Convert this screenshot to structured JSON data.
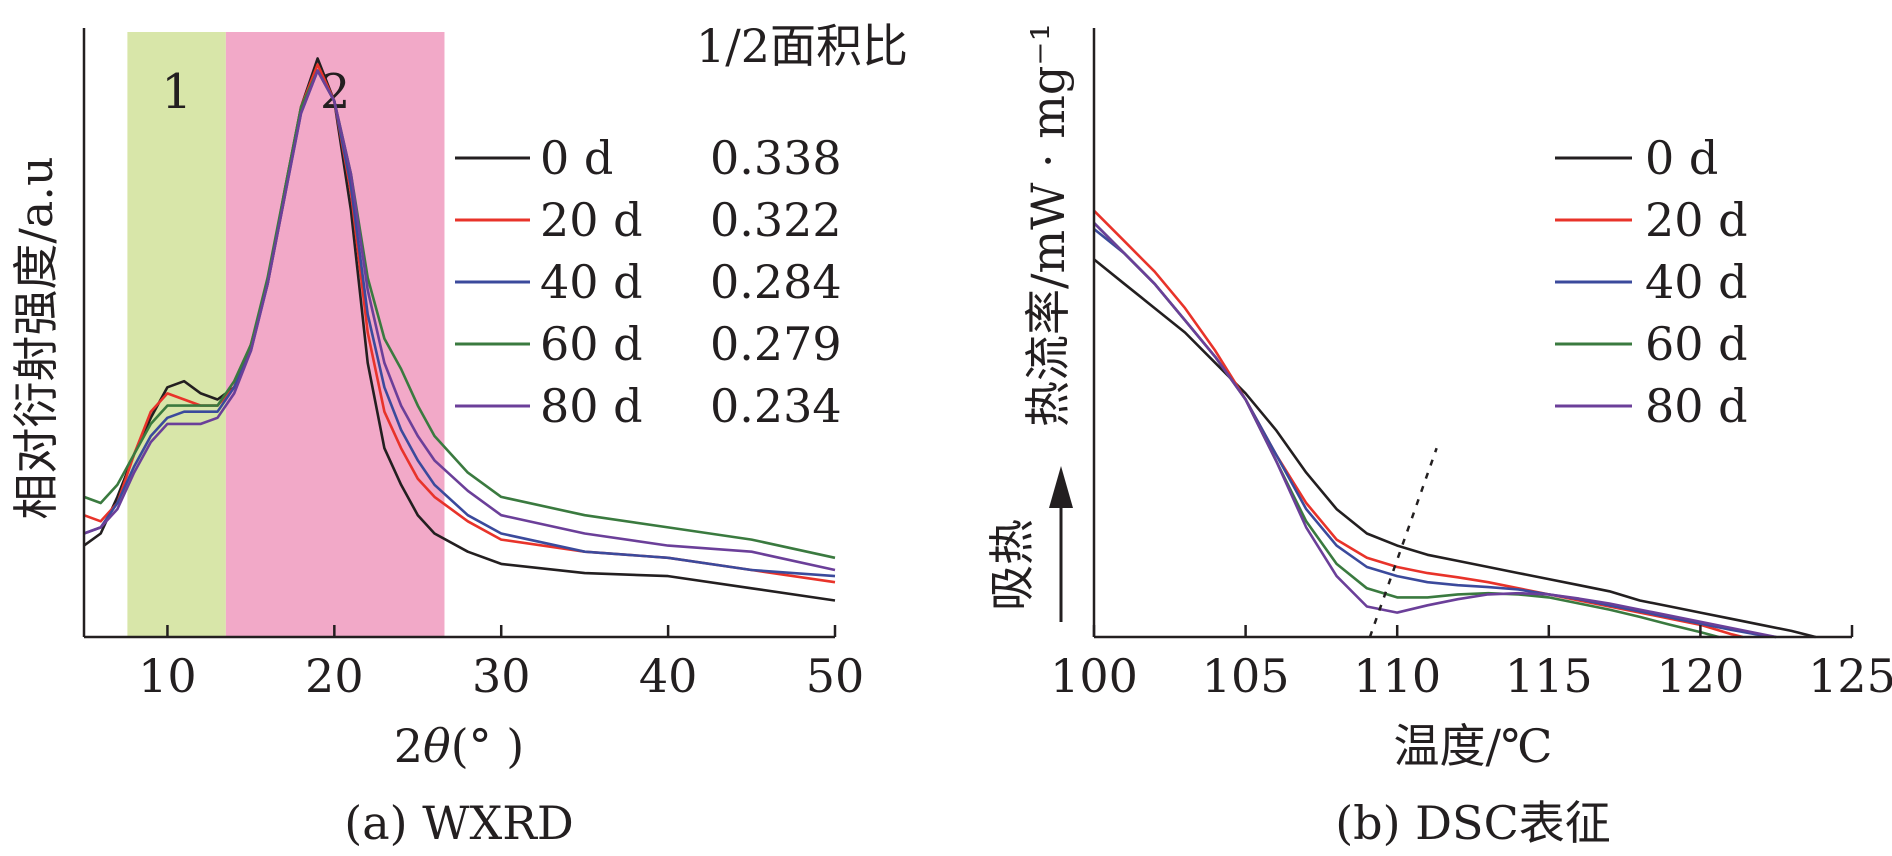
{
  "chart_data": [
    {
      "type": "line",
      "caption": "(a) WXRD",
      "xlabel_prefix": "2",
      "xlabel_theta": "θ",
      "xlabel_suffix": "(° )",
      "ylabel": "相对衍射强度/a.u",
      "xlim": [
        5,
        50
      ],
      "xticks": [
        "10",
        "20",
        "30",
        "40",
        "50"
      ],
      "xtick_values": [
        10,
        20,
        30,
        40,
        50
      ],
      "regions": [
        {
          "label": "1",
          "x0": 7.6,
          "x1": 13.5,
          "color": "#d8e6a9"
        },
        {
          "label": "2",
          "x0": 13.5,
          "x1": 26.6,
          "color": "#f2a9c8"
        }
      ],
      "legend_header": "1/2面积比",
      "series": [
        {
          "name": "0 d",
          "ratio": "0.338",
          "color": "#231f20",
          "points": [
            [
              5,
              0.15
            ],
            [
              6,
              0.17
            ],
            [
              7,
              0.23
            ],
            [
              8,
              0.3
            ],
            [
              9,
              0.36
            ],
            [
              10,
              0.41
            ],
            [
              11,
              0.42
            ],
            [
              12,
              0.4
            ],
            [
              13,
              0.39
            ],
            [
              14,
              0.41
            ],
            [
              15,
              0.48
            ],
            [
              16,
              0.58
            ],
            [
              17,
              0.73
            ],
            [
              18,
              0.87
            ],
            [
              19,
              0.95
            ],
            [
              20,
              0.88
            ],
            [
              21,
              0.7
            ],
            [
              22,
              0.45
            ],
            [
              23,
              0.31
            ],
            [
              24,
              0.25
            ],
            [
              25,
              0.2
            ],
            [
              26,
              0.17
            ],
            [
              28,
              0.14
            ],
            [
              30,
              0.12
            ],
            [
              35,
              0.105
            ],
            [
              40,
              0.1
            ],
            [
              45,
              0.08
            ],
            [
              50,
              0.06
            ]
          ]
        },
        {
          "name": "20 d",
          "ratio": "0.322",
          "color": "#e8332a",
          "points": [
            [
              5,
              0.2
            ],
            [
              6,
              0.19
            ],
            [
              7,
              0.22
            ],
            [
              8,
              0.3
            ],
            [
              9,
              0.37
            ],
            [
              10,
              0.4
            ],
            [
              11,
              0.39
            ],
            [
              12,
              0.38
            ],
            [
              13,
              0.38
            ],
            [
              14,
              0.41
            ],
            [
              15,
              0.48
            ],
            [
              16,
              0.58
            ],
            [
              17,
              0.72
            ],
            [
              18,
              0.87
            ],
            [
              19,
              0.94
            ],
            [
              20,
              0.88
            ],
            [
              21,
              0.73
            ],
            [
              22,
              0.5
            ],
            [
              23,
              0.37
            ],
            [
              24,
              0.31
            ],
            [
              25,
              0.26
            ],
            [
              26,
              0.23
            ],
            [
              28,
              0.19
            ],
            [
              30,
              0.16
            ],
            [
              35,
              0.14
            ],
            [
              40,
              0.13
            ],
            [
              45,
              0.11
            ],
            [
              50,
              0.09
            ]
          ]
        },
        {
          "name": "40 d",
          "ratio": "0.284",
          "color": "#3b4a9c",
          "points": [
            [
              5,
              0.17
            ],
            [
              6,
              0.18
            ],
            [
              7,
              0.22
            ],
            [
              8,
              0.28
            ],
            [
              9,
              0.33
            ],
            [
              10,
              0.36
            ],
            [
              11,
              0.37
            ],
            [
              12,
              0.37
            ],
            [
              13,
              0.37
            ],
            [
              14,
              0.41
            ],
            [
              15,
              0.47
            ],
            [
              16,
              0.58
            ],
            [
              17,
              0.72
            ],
            [
              18,
              0.86
            ],
            [
              19,
              0.93
            ],
            [
              20,
              0.88
            ],
            [
              21,
              0.74
            ],
            [
              22,
              0.53
            ],
            [
              23,
              0.41
            ],
            [
              24,
              0.34
            ],
            [
              25,
              0.29
            ],
            [
              26,
              0.25
            ],
            [
              28,
              0.2
            ],
            [
              30,
              0.17
            ],
            [
              35,
              0.14
            ],
            [
              40,
              0.13
            ],
            [
              45,
              0.11
            ],
            [
              50,
              0.1
            ]
          ]
        },
        {
          "name": "60 d",
          "ratio": "0.279",
          "color": "#3a7a3f",
          "points": [
            [
              5,
              0.23
            ],
            [
              6,
              0.22
            ],
            [
              7,
              0.25
            ],
            [
              8,
              0.3
            ],
            [
              9,
              0.35
            ],
            [
              10,
              0.38
            ],
            [
              11,
              0.38
            ],
            [
              12,
              0.38
            ],
            [
              13,
              0.38
            ],
            [
              14,
              0.42
            ],
            [
              15,
              0.48
            ],
            [
              16,
              0.59
            ],
            [
              17,
              0.73
            ],
            [
              18,
              0.87
            ],
            [
              19,
              0.93
            ],
            [
              20,
              0.88
            ],
            [
              21,
              0.76
            ],
            [
              22,
              0.59
            ],
            [
              23,
              0.49
            ],
            [
              24,
              0.44
            ],
            [
              25,
              0.38
            ],
            [
              26,
              0.33
            ],
            [
              28,
              0.27
            ],
            [
              30,
              0.23
            ],
            [
              35,
              0.2
            ],
            [
              40,
              0.18
            ],
            [
              45,
              0.16
            ],
            [
              50,
              0.13
            ]
          ]
        },
        {
          "name": "80 d",
          "ratio": "0.234",
          "color": "#6b3f99",
          "points": [
            [
              5,
              0.17
            ],
            [
              6,
              0.18
            ],
            [
              7,
              0.21
            ],
            [
              8,
              0.27
            ],
            [
              9,
              0.32
            ],
            [
              10,
              0.35
            ],
            [
              11,
              0.35
            ],
            [
              12,
              0.35
            ],
            [
              13,
              0.36
            ],
            [
              14,
              0.4
            ],
            [
              15,
              0.47
            ],
            [
              16,
              0.58
            ],
            [
              17,
              0.72
            ],
            [
              18,
              0.86
            ],
            [
              19,
              0.93
            ],
            [
              20,
              0.88
            ],
            [
              21,
              0.76
            ],
            [
              22,
              0.57
            ],
            [
              23,
              0.45
            ],
            [
              24,
              0.38
            ],
            [
              25,
              0.33
            ],
            [
              26,
              0.29
            ],
            [
              28,
              0.24
            ],
            [
              30,
              0.2
            ],
            [
              35,
              0.17
            ],
            [
              40,
              0.15
            ],
            [
              45,
              0.14
            ],
            [
              50,
              0.11
            ]
          ]
        }
      ]
    },
    {
      "type": "line",
      "caption": "(b) DSC表征",
      "xlabel": "温度/℃",
      "ylabel": "热流率/mW · mg⁻¹",
      "endotherm_label": "吸热",
      "xlim": [
        100,
        125
      ],
      "xticks": [
        "100",
        "105",
        "110",
        "115",
        "120",
        "125"
      ],
      "xtick_values": [
        100,
        105,
        110,
        115,
        120,
        125
      ],
      "tangent_line": [
        [
          109.1,
          0.0
        ],
        [
          111.3,
          0.31
        ]
      ],
      "series": [
        {
          "name": "0 d",
          "color": "#231f20",
          "points": [
            [
              100,
              0.62
            ],
            [
              101,
              0.58
            ],
            [
              102,
              0.54
            ],
            [
              103,
              0.5
            ],
            [
              104,
              0.45
            ],
            [
              105,
              0.4
            ],
            [
              106,
              0.34
            ],
            [
              107,
              0.27
            ],
            [
              108,
              0.21
            ],
            [
              109,
              0.17
            ],
            [
              110,
              0.15
            ],
            [
              111,
              0.135
            ],
            [
              112,
              0.125
            ],
            [
              113,
              0.115
            ],
            [
              114,
              0.105
            ],
            [
              115,
              0.095
            ],
            [
              116,
              0.085
            ],
            [
              117,
              0.075
            ],
            [
              118,
              0.06
            ],
            [
              119,
              0.05
            ],
            [
              120,
              0.04
            ],
            [
              121,
              0.03
            ],
            [
              122,
              0.02
            ],
            [
              123,
              0.01
            ],
            [
              123.8,
              0.0
            ]
          ]
        },
        {
          "name": "20 d",
          "color": "#e8332a",
          "points": [
            [
              100,
              0.7
            ],
            [
              101,
              0.65
            ],
            [
              102,
              0.6
            ],
            [
              103,
              0.54
            ],
            [
              104,
              0.47
            ],
            [
              105,
              0.39
            ],
            [
              106,
              0.3
            ],
            [
              107,
              0.22
            ],
            [
              108,
              0.16
            ],
            [
              109,
              0.13
            ],
            [
              110,
              0.115
            ],
            [
              111,
              0.105
            ],
            [
              112,
              0.098
            ],
            [
              113,
              0.09
            ],
            [
              114,
              0.08
            ],
            [
              115,
              0.07
            ],
            [
              116,
              0.06
            ],
            [
              117,
              0.05
            ],
            [
              118,
              0.04
            ],
            [
              119,
              0.03
            ],
            [
              120,
              0.02
            ],
            [
              121,
              0.005
            ],
            [
              121.4,
              0.0
            ]
          ]
        },
        {
          "name": "40 d",
          "color": "#3b4a9c",
          "points": [
            [
              100,
              0.67
            ],
            [
              101,
              0.63
            ],
            [
              102,
              0.58
            ],
            [
              103,
              0.52
            ],
            [
              104,
              0.46
            ],
            [
              105,
              0.39
            ],
            [
              106,
              0.3
            ],
            [
              107,
              0.21
            ],
            [
              108,
              0.15
            ],
            [
              109,
              0.115
            ],
            [
              110,
              0.1
            ],
            [
              111,
              0.09
            ],
            [
              112,
              0.085
            ],
            [
              113,
              0.082
            ],
            [
              114,
              0.078
            ],
            [
              115,
              0.07
            ],
            [
              116,
              0.062
            ],
            [
              117,
              0.052
            ],
            [
              118,
              0.042
            ],
            [
              119,
              0.032
            ],
            [
              120,
              0.022
            ],
            [
              121,
              0.012
            ],
            [
              122,
              0.003
            ],
            [
              122.5,
              0.0
            ]
          ]
        },
        {
          "name": "60 d",
          "color": "#3a7a3f",
          "points": [
            [
              100,
              0.68
            ],
            [
              101,
              0.63
            ],
            [
              102,
              0.58
            ],
            [
              103,
              0.52
            ],
            [
              104,
              0.46
            ],
            [
              105,
              0.39
            ],
            [
              106,
              0.29
            ],
            [
              107,
              0.19
            ],
            [
              108,
              0.12
            ],
            [
              109,
              0.08
            ],
            [
              110,
              0.065
            ],
            [
              111,
              0.065
            ],
            [
              112,
              0.07
            ],
            [
              113,
              0.072
            ],
            [
              114,
              0.07
            ],
            [
              115,
              0.065
            ],
            [
              116,
              0.055
            ],
            [
              117,
              0.045
            ],
            [
              118,
              0.033
            ],
            [
              119,
              0.02
            ],
            [
              120,
              0.008
            ],
            [
              120.6,
              0.0
            ]
          ]
        },
        {
          "name": "80 d",
          "color": "#6b3f99",
          "points": [
            [
              100,
              0.68
            ],
            [
              101,
              0.63
            ],
            [
              102,
              0.58
            ],
            [
              103,
              0.52
            ],
            [
              104,
              0.46
            ],
            [
              105,
              0.39
            ],
            [
              106,
              0.29
            ],
            [
              107,
              0.18
            ],
            [
              108,
              0.1
            ],
            [
              109,
              0.05
            ],
            [
              110,
              0.04
            ],
            [
              111,
              0.052
            ],
            [
              112,
              0.062
            ],
            [
              113,
              0.07
            ],
            [
              114,
              0.072
            ],
            [
              115,
              0.07
            ],
            [
              116,
              0.063
            ],
            [
              117,
              0.055
            ],
            [
              118,
              0.045
            ],
            [
              119,
              0.035
            ],
            [
              120,
              0.025
            ],
            [
              121,
              0.015
            ],
            [
              122,
              0.005
            ],
            [
              122.5,
              0.0
            ]
          ]
        }
      ]
    }
  ]
}
